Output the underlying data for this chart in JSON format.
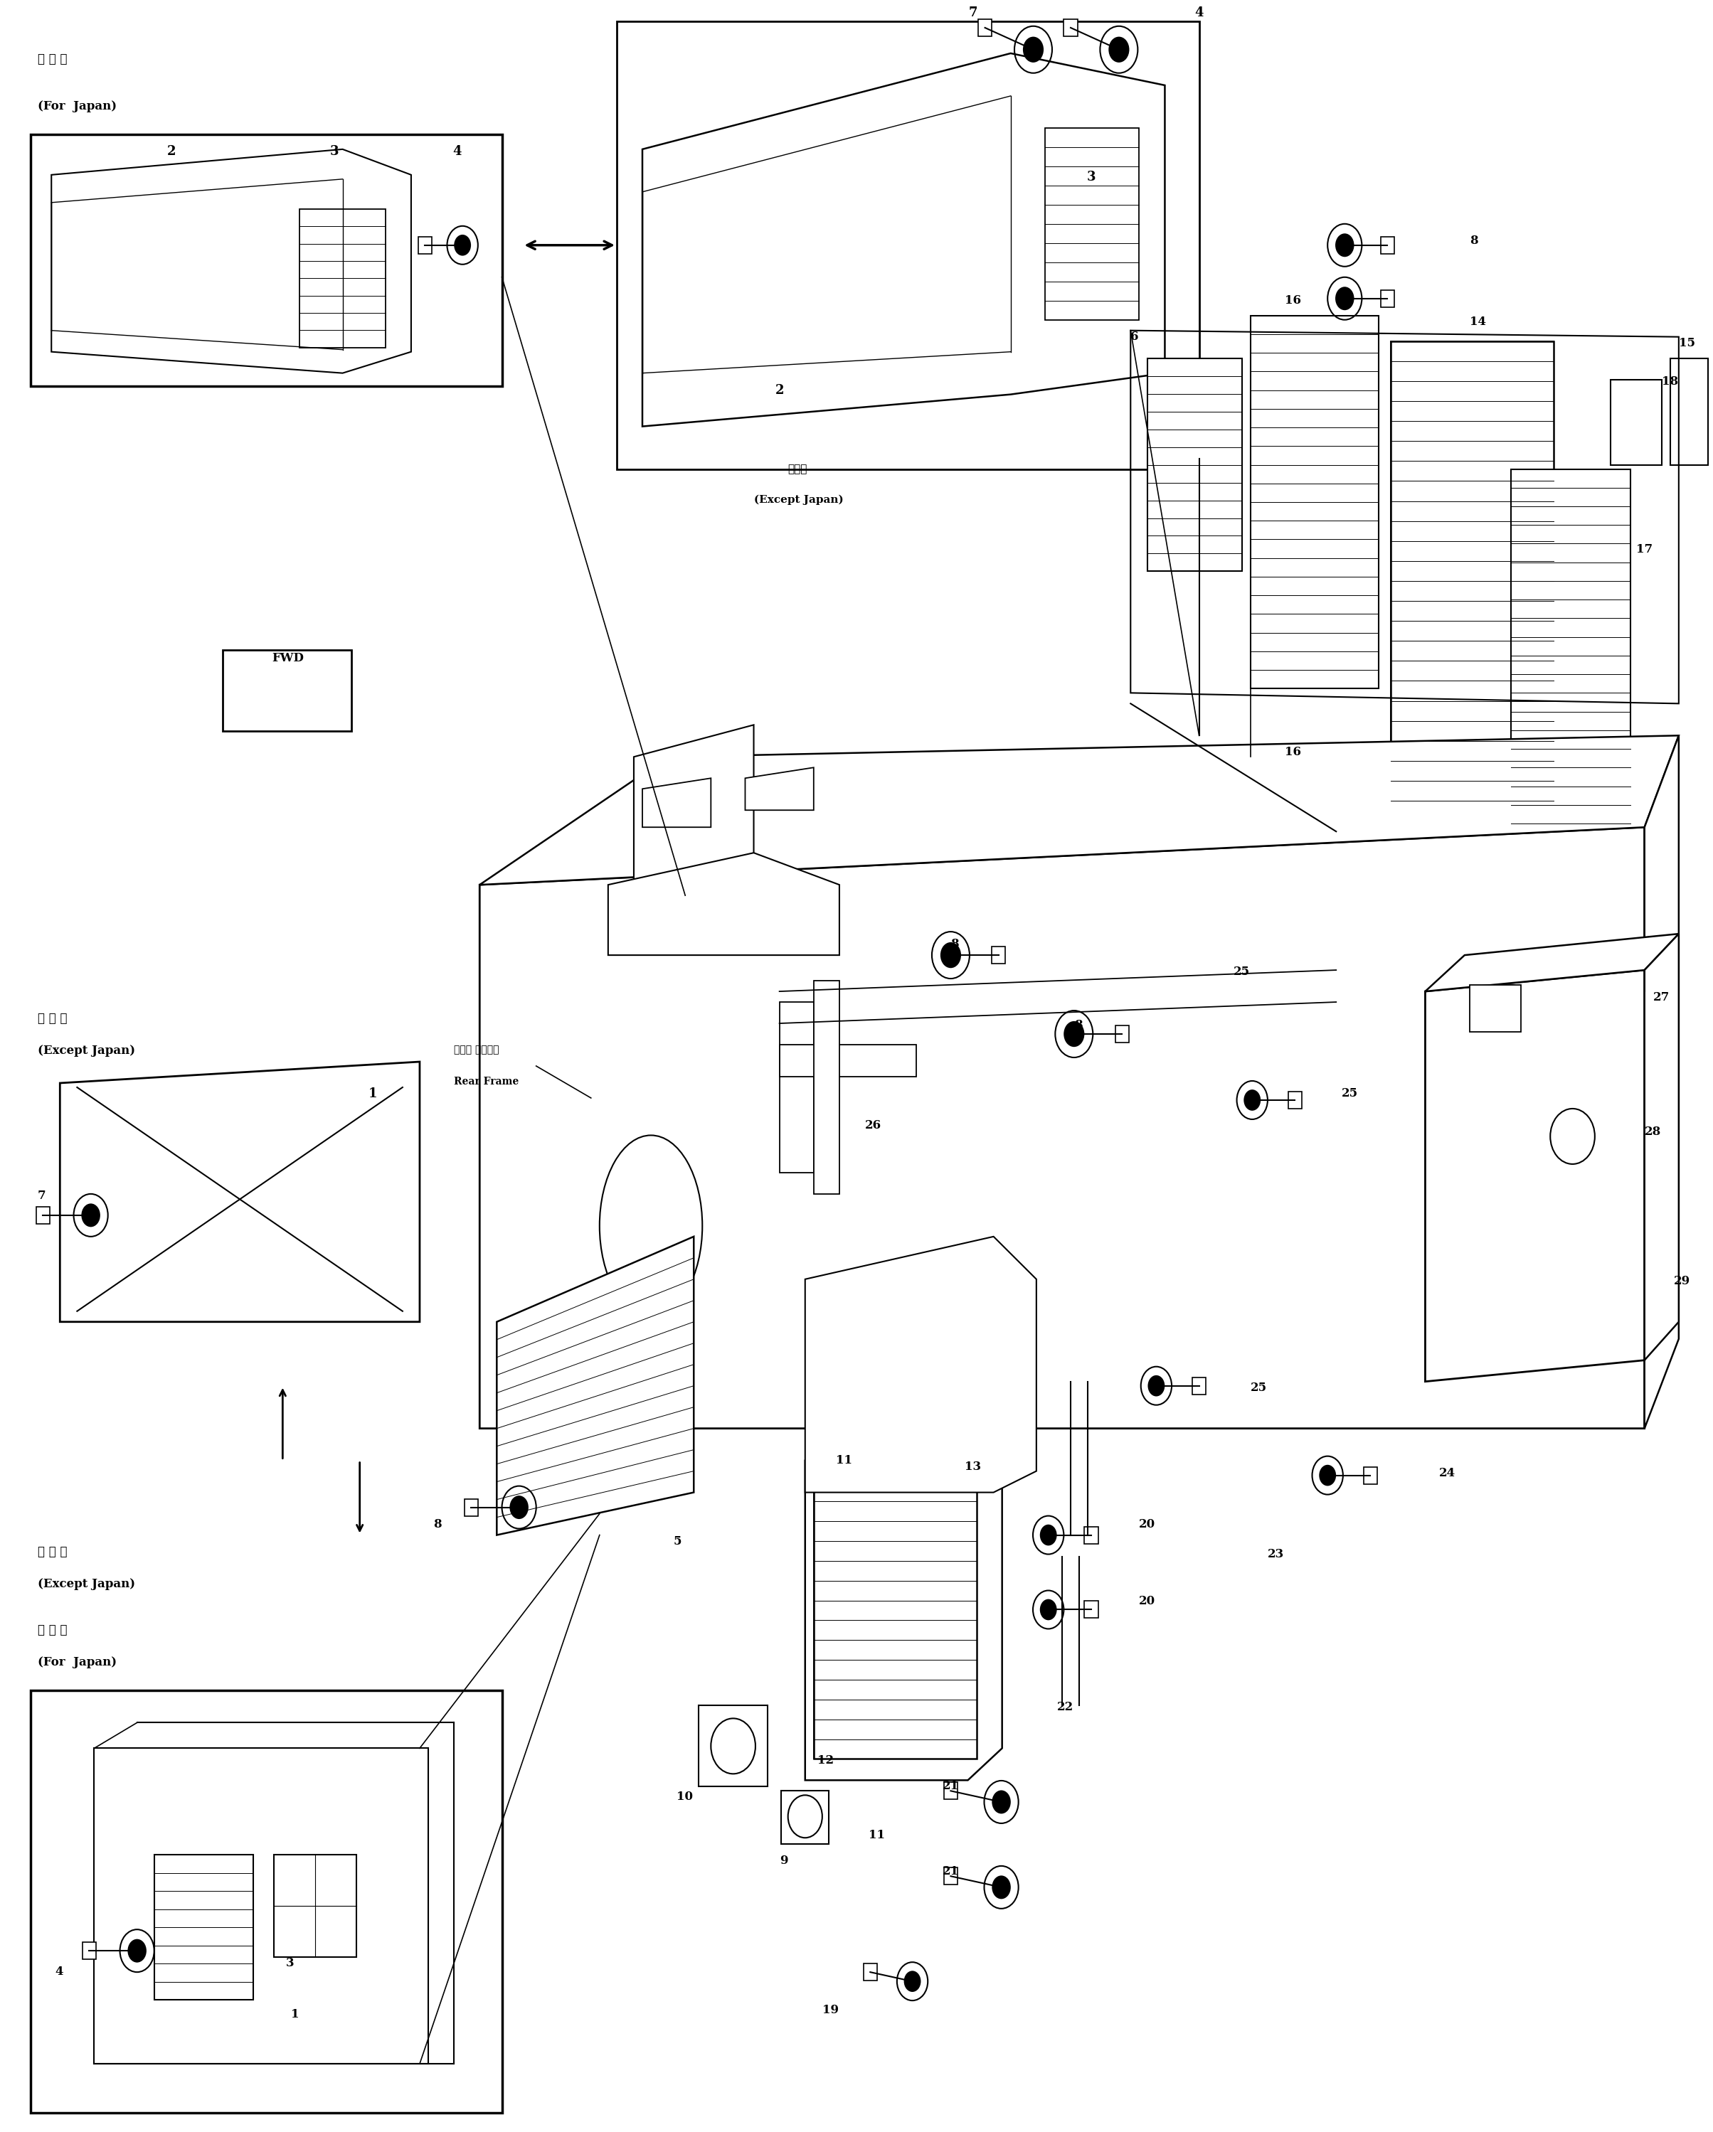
{
  "bg_color": "#ffffff",
  "lc": "#000000",
  "fig_width": 24.08,
  "fig_height": 29.98,
  "labels": {
    "top_left_jp": "国 内 向",
    "top_left_en": "(For  Japan)",
    "mid_left_jp": "海 外 向",
    "mid_left_en": "(Except Japan)",
    "bot_label_jp1": "国 内 向",
    "bot_label_en1": "(For  Japan)",
    "bot_label_jp2": "海 外 向",
    "bot_label_en2": "(Except Japan)",
    "rear_frame_jp": "リヤー フレーム",
    "rear_frame_en": "Rear Frame",
    "fwd": "FWD",
    "top_center_jp": "海外向",
    "top_center_en": "(Except Japan)"
  }
}
